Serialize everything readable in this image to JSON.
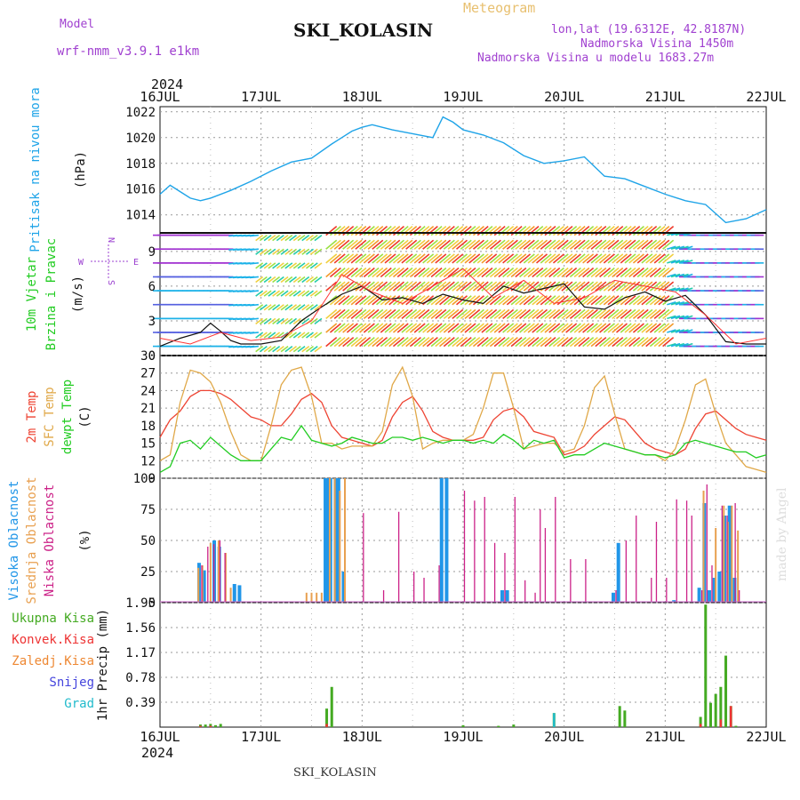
{
  "header": {
    "model_label": "Model",
    "model_name": "wrf-nmm_v3.9.1 e1km",
    "title": "SKI_KOLASIN",
    "app": "Meteogram",
    "lonlat": "lon,lat (19.6312E, 42.8187N)",
    "elev": "Nadmorska Visina 1450m",
    "elev_model": "Nadmorska Visina u modelu 1683.27m",
    "year": "2024"
  },
  "footer": {
    "station": "SKI_KOLASIN",
    "year": "2024",
    "signature": "made by Angel"
  },
  "colors": {
    "pressure": "#1fa4e8",
    "wind_label": "#22cc22",
    "wind_units": "#9b40d0",
    "temp2m": "#ee4433",
    "sfc": "#e0a848",
    "dewpt": "#22cc22",
    "high_cloud": "#2196e8",
    "mid_cloud": "#e8a050",
    "low_cloud": "#cc2288",
    "precip_total": "#44aa22",
    "precip_conv": "#ee3333",
    "precip_frz": "#ee8833",
    "snow": "#4444dd",
    "hail": "#22bbcc",
    "header_purple": "#a040d0",
    "header_gold": "#e8c070"
  },
  "chart_data": [
    {
      "type": "line",
      "id": "pressure",
      "ylabel_lines": [
        "Pritisak na nivou mora"
      ],
      "units": "(hPa)",
      "ylim": [
        1012.6,
        1022.4
      ],
      "yticks": [
        1014,
        1016,
        1018,
        1020,
        1022
      ],
      "x_categories": [
        "16JUL",
        "17JUL",
        "18JUL",
        "19JUL",
        "20JUL",
        "21JUL",
        "22JUL"
      ],
      "series": [
        {
          "x": [
            0,
            0.1,
            0.2,
            0.3,
            0.4,
            0.5,
            0.7,
            0.9,
            1.1,
            1.3,
            1.5,
            1.7,
            1.9,
            2.0,
            2.1,
            2.3,
            2.5,
            2.7,
            2.8,
            2.9,
            3.0,
            3.2,
            3.4,
            3.6,
            3.8,
            4.0,
            4.2,
            4.4,
            4.6,
            4.8,
            5.0,
            5.2,
            5.4,
            5.6,
            5.8,
            6.0
          ],
          "y": [
            1015.6,
            1016.3,
            1015.8,
            1015.3,
            1015.1,
            1015.3,
            1015.9,
            1016.6,
            1017.4,
            1018.1,
            1018.4,
            1019.5,
            1020.5,
            1020.8,
            1021.0,
            1020.6,
            1020.3,
            1020.0,
            1021.6,
            1021.2,
            1020.6,
            1020.2,
            1019.6,
            1018.6,
            1018.0,
            1018.2,
            1018.5,
            1017.0,
            1016.8,
            1016.2,
            1015.6,
            1015.1,
            1014.8,
            1013.4,
            1013.7,
            1014.4
          ]
        }
      ],
      "grid": true
    },
    {
      "type": "line",
      "id": "wind",
      "ylabel_lines": [
        "10m Vjetar",
        "Brzina i Pravac"
      ],
      "units": "(m/s)",
      "compass_labels": {
        "north": "N",
        "south": "S",
        "west": "W",
        "east": "E"
      },
      "ylim": [
        0,
        10.6
      ],
      "yticks": [
        0,
        3,
        6,
        9
      ],
      "series": [
        {
          "name": "speed",
          "x": [
            0,
            0.2,
            0.4,
            0.5,
            0.6,
            0.7,
            0.8,
            0.9,
            1.0,
            1.2,
            1.4,
            1.6,
            1.8,
            2.0,
            2.2,
            2.4,
            2.6,
            2.8,
            3.0,
            3.2,
            3.4,
            3.6,
            3.8,
            4.0,
            4.2,
            4.4,
            4.6,
            4.8,
            5.0,
            5.2,
            5.4,
            5.6,
            5.8,
            6.0
          ],
          "y": [
            0.8,
            1.5,
            2.0,
            2.8,
            2.1,
            1.3,
            1.0,
            1.0,
            1.0,
            1.3,
            3.0,
            4.2,
            5.3,
            6.0,
            4.8,
            5.0,
            4.5,
            5.3,
            4.8,
            4.5,
            6.0,
            5.4,
            5.8,
            6.2,
            4.2,
            4.0,
            5.0,
            5.5,
            4.7,
            5.2,
            3.5,
            1.2,
            1.0,
            1.0
          ]
        },
        {
          "name": "gust",
          "x": [
            0,
            0.3,
            0.6,
            0.9,
            1.2,
            1.5,
            1.8,
            2.1,
            2.4,
            2.7,
            3.0,
            3.3,
            3.6,
            3.9,
            4.2,
            4.5,
            4.8,
            5.1,
            5.4,
            5.7,
            6.0
          ],
          "y": [
            1.5,
            1.0,
            2.0,
            1.3,
            1.6,
            3.0,
            7.0,
            5.5,
            4.5,
            6.0,
            7.5,
            5.0,
            6.5,
            4.5,
            5.0,
            6.5,
            6.0,
            5.5,
            3.5,
            1.0,
            1.5
          ]
        }
      ],
      "barbs": {
        "rows": [
          0.8,
          2.0,
          3.2,
          4.4,
          5.6,
          6.8,
          8.0,
          9.2,
          10.4
        ],
        "columns_per_day": 24
      }
    },
    {
      "type": "line",
      "id": "temperature",
      "ylabel_lines": [
        "2m Temp",
        "SFC Temp",
        "dewpt Temp"
      ],
      "units": "(C)",
      "ylim": [
        9,
        30
      ],
      "yticks": [
        9,
        12,
        15,
        18,
        21,
        24,
        27,
        30
      ],
      "series": [
        {
          "name": "2m Temp",
          "x": [
            0,
            0.1,
            0.2,
            0.3,
            0.4,
            0.5,
            0.6,
            0.7,
            0.8,
            0.9,
            1.0,
            1.1,
            1.2,
            1.3,
            1.4,
            1.5,
            1.6,
            1.7,
            1.8,
            1.9,
            2.0,
            2.1,
            2.2,
            2.3,
            2.4,
            2.5,
            2.6,
            2.7,
            2.8,
            2.9,
            3.0,
            3.1,
            3.2,
            3.3,
            3.4,
            3.5,
            3.6,
            3.7,
            3.8,
            3.9,
            4.0,
            4.1,
            4.2,
            4.3,
            4.4,
            4.5,
            4.6,
            4.7,
            4.8,
            4.9,
            5.0,
            5.1,
            5.2,
            5.3,
            5.4,
            5.5,
            5.6,
            5.7,
            5.8,
            5.9,
            6.0
          ],
          "y": [
            16,
            19,
            20.5,
            23,
            24,
            24,
            23.5,
            22.5,
            21,
            19.5,
            19,
            18,
            18,
            20,
            22.5,
            23.5,
            22,
            18,
            16,
            15.5,
            15,
            14.5,
            15.5,
            19.5,
            22,
            23,
            20.5,
            17,
            16,
            15.5,
            15.5,
            15.5,
            16,
            19,
            20.5,
            21,
            19.5,
            17,
            16.5,
            16,
            13,
            13.5,
            14.5,
            16.5,
            18,
            19.5,
            19,
            17,
            15,
            14,
            13.5,
            13,
            14,
            17.5,
            20,
            20.5,
            19,
            17.5,
            16.5,
            16,
            15.5
          ]
        },
        {
          "name": "SFC Temp",
          "x": [
            0,
            0.1,
            0.2,
            0.3,
            0.4,
            0.5,
            0.6,
            0.7,
            0.8,
            0.9,
            1.0,
            1.1,
            1.2,
            1.3,
            1.4,
            1.5,
            1.6,
            1.7,
            1.8,
            1.9,
            2.0,
            2.1,
            2.2,
            2.3,
            2.4,
            2.5,
            2.6,
            2.7,
            2.8,
            2.9,
            3.0,
            3.1,
            3.2,
            3.3,
            3.4,
            3.5,
            3.6,
            3.7,
            3.8,
            3.9,
            4.0,
            4.1,
            4.2,
            4.3,
            4.4,
            4.5,
            4.6,
            4.7,
            4.8,
            4.9,
            5.0,
            5.1,
            5.2,
            5.3,
            5.4,
            5.5,
            5.6,
            5.7,
            5.8,
            5.9,
            6.0
          ],
          "y": [
            12,
            13,
            22,
            27.5,
            27,
            25.5,
            22,
            17,
            13,
            12,
            12,
            18,
            25,
            27.5,
            28,
            23,
            15,
            15,
            14,
            14.5,
            14.5,
            14.5,
            17,
            25,
            28,
            23,
            14,
            15,
            15.5,
            15.5,
            15.5,
            16.5,
            21,
            27,
            27,
            21,
            14,
            14.5,
            15,
            15,
            13.5,
            14,
            18,
            24.5,
            26.5,
            20,
            14,
            13.5,
            13,
            13,
            12,
            14,
            19,
            25,
            26,
            20,
            15,
            13,
            11,
            10.5,
            10
          ]
        },
        {
          "name": "dewpt Temp",
          "x": [
            0,
            0.1,
            0.2,
            0.3,
            0.4,
            0.5,
            0.6,
            0.7,
            0.8,
            0.9,
            1.0,
            1.1,
            1.2,
            1.3,
            1.4,
            1.5,
            1.6,
            1.7,
            1.8,
            1.9,
            2.0,
            2.1,
            2.2,
            2.3,
            2.4,
            2.5,
            2.6,
            2.7,
            2.8,
            2.9,
            3.0,
            3.1,
            3.2,
            3.3,
            3.4,
            3.5,
            3.6,
            3.7,
            3.8,
            3.9,
            4.0,
            4.1,
            4.2,
            4.3,
            4.4,
            4.5,
            4.6,
            4.7,
            4.8,
            4.9,
            5.0,
            5.1,
            5.2,
            5.3,
            5.4,
            5.5,
            5.6,
            5.7,
            5.8,
            5.9,
            6.0
          ],
          "y": [
            10,
            11,
            15,
            15.5,
            14,
            16,
            14.5,
            13,
            12,
            12,
            12,
            14,
            16,
            15.5,
            18,
            15.5,
            15,
            14.5,
            15,
            16,
            15.5,
            15,
            15,
            16,
            16,
            15.5,
            16,
            15.5,
            15,
            15.5,
            15.5,
            15,
            15.5,
            15,
            16.5,
            15.5,
            14,
            15.5,
            15,
            15.5,
            12.5,
            13,
            13,
            14,
            15,
            14.5,
            14,
            13.5,
            13,
            13,
            12.5,
            13,
            15,
            15.5,
            15,
            14.5,
            14,
            13.5,
            13.5,
            12.5,
            13
          ]
        }
      ]
    },
    {
      "type": "bar",
      "id": "clouds",
      "ylabel_lines": [
        "Visoka Oblacnost",
        "Srednja Oblacnost",
        "Niska Oblacnost"
      ],
      "units": "(%)",
      "ylim": [
        0,
        100
      ],
      "yticks": [
        0,
        25,
        50,
        75,
        100
      ],
      "series": [
        {
          "name": "Visoka Oblacnost",
          "x": [
            0.4,
            0.45,
            0.55,
            0.6,
            0.75,
            0.8,
            1.65,
            1.67,
            1.7,
            1.75,
            1.78,
            1.83,
            2.8,
            2.85,
            3.4,
            3.45,
            4.5,
            4.55,
            5.1,
            5.35,
            5.4,
            5.45,
            5.5,
            5.55,
            5.6,
            5.65,
            5.7
          ],
          "y": [
            32,
            26,
            50,
            45,
            15,
            14,
            100,
            100,
            100,
            100,
            100,
            25,
            100,
            100,
            10,
            10,
            8,
            48,
            2,
            12,
            80,
            10,
            20,
            25,
            70,
            78,
            20
          ]
        },
        {
          "name": "Srednja Oblacnost",
          "x": [
            0.38,
            0.42,
            0.5,
            0.58,
            0.65,
            0.7,
            1.45,
            1.5,
            1.55,
            1.6,
            1.68,
            1.73,
            1.78,
            1.83,
            5.38,
            5.5,
            5.58,
            5.62,
            5.66,
            5.72
          ],
          "y": [
            28,
            30,
            48,
            50,
            40,
            12,
            8,
            8,
            8,
            8,
            100,
            100,
            90,
            100,
            90,
            60,
            78,
            65,
            78,
            58
          ]
        },
        {
          "name": "Niska Oblacnost",
          "x": [
            0.4,
            0.46,
            0.52,
            0.58,
            0.63,
            2.0,
            2.2,
            2.35,
            2.5,
            2.6,
            2.75,
            3.0,
            3.1,
            3.2,
            3.3,
            3.4,
            3.5,
            3.6,
            3.7,
            3.75,
            3.8,
            3.9,
            4.05,
            4.2,
            4.5,
            4.6,
            4.7,
            4.85,
            4.9,
            5.0,
            5.1,
            5.2,
            5.25,
            5.35,
            5.4,
            5.45,
            5.55,
            5.6,
            5.68,
            5.72
          ],
          "y": [
            30,
            45,
            47,
            50,
            40,
            72,
            10,
            73,
            25,
            20,
            30,
            90,
            82,
            85,
            48,
            40,
            85,
            18,
            8,
            75,
            60,
            85,
            35,
            35,
            10,
            50,
            70,
            20,
            65,
            20,
            83,
            82,
            70,
            10,
            95,
            30,
            78,
            70,
            80,
            10
          ]
        }
      ]
    },
    {
      "type": "bar",
      "id": "precip",
      "ylabel_lines": [
        "1hr Precip"
      ],
      "units": "(mm)",
      "ylim": [
        0,
        1.95
      ],
      "yticks": [
        0.39,
        0.78,
        1.17,
        1.56,
        1.95
      ],
      "legend": [
        "Ukupna Kisa",
        "Konvek.Kisa",
        "Zaledj.Kisa",
        "Snijeg",
        "Grad"
      ],
      "series": [
        {
          "name": "Ukupna Kisa",
          "x": [
            0.4,
            0.45,
            0.5,
            0.55,
            0.6,
            1.65,
            1.7,
            3.0,
            3.35,
            3.5,
            3.9,
            4.55,
            4.6,
            5.35,
            5.4,
            5.45,
            5.5,
            5.55,
            5.6,
            5.65,
            5.7
          ],
          "y": [
            0.04,
            0.04,
            0.05,
            0.03,
            0.05,
            0.29,
            0.63,
            0.03,
            0.02,
            0.04,
            0.22,
            0.33,
            0.26,
            0.16,
            1.92,
            0.38,
            0.52,
            0.63,
            1.12,
            0.33,
            0.02
          ]
        },
        {
          "name": "Konvek.Kisa",
          "x": [
            0.4,
            0.5,
            1.65,
            3.9,
            5.35,
            5.45,
            5.55,
            5.65
          ],
          "y": [
            0.02,
            0.02,
            0.05,
            0.0,
            0.05,
            0.0,
            0.12,
            0.33
          ]
        },
        {
          "name": "Grad",
          "x": [
            3.9
          ],
          "y": [
            0.22
          ]
        }
      ]
    }
  ]
}
